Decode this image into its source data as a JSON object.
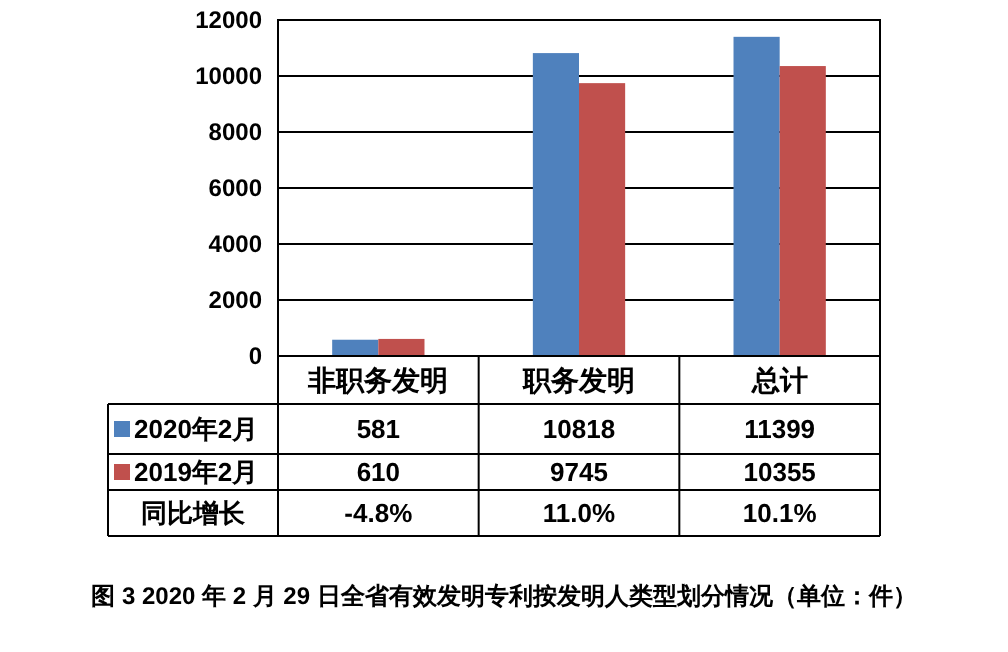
{
  "chart_data": {
    "type": "bar",
    "title": "图 3 2020 年 2 月 29 日全省有效发明专利按发明人类型划分情况（单位：件）",
    "categories": [
      "非职务发明",
      "职务发明",
      "总计"
    ],
    "series": [
      {
        "name": "2020年2月",
        "color": "#4f81bd",
        "values": [
          581,
          10818,
          11399
        ]
      },
      {
        "name": "2019年2月",
        "color": "#c0504d",
        "values": [
          610,
          9745,
          10355
        ]
      }
    ],
    "ylim": [
      0,
      12000
    ],
    "yticks": [
      0,
      2000,
      4000,
      6000,
      8000,
      10000,
      12000
    ],
    "grid": "y",
    "legend": "bottom",
    "data_labels": true,
    "annotations": [
      "同比增长",
      "-4.8%",
      "11.0%",
      "10.1%"
    ]
  }
}
